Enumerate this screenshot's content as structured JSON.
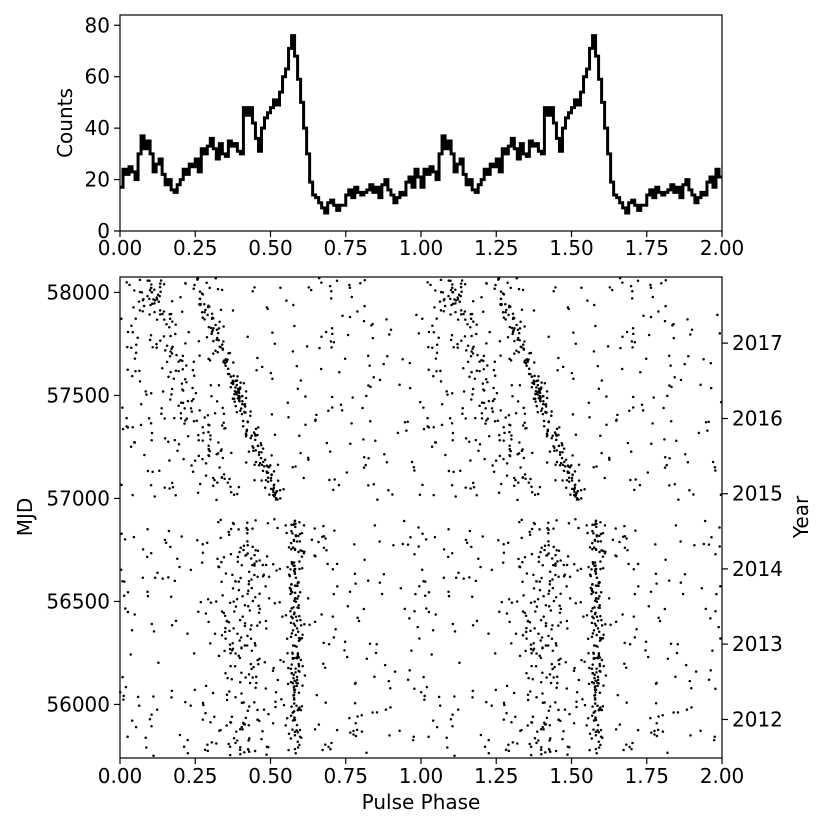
{
  "chart_data": [
    {
      "type": "line",
      "panel": "top",
      "title": "",
      "xlabel": "",
      "ylabel": "Counts",
      "xlim": [
        0.0,
        2.0
      ],
      "ylim": [
        0,
        84
      ],
      "xticks": [
        "0.00",
        "0.25",
        "0.50",
        "0.75",
        "1.00",
        "1.25",
        "1.50",
        "1.75",
        "2.00"
      ],
      "yticks": [
        "0",
        "20",
        "40",
        "60",
        "80"
      ],
      "drawstyle": "steps",
      "series": [
        {
          "x": [
            0.0,
            0.01,
            0.02,
            0.03,
            0.04,
            0.05,
            0.06,
            0.07,
            0.08,
            0.09,
            0.1,
            0.11,
            0.12,
            0.13,
            0.14,
            0.15,
            0.16,
            0.17,
            0.18,
            0.19,
            0.2,
            0.21,
            0.22,
            0.23,
            0.24,
            0.25,
            0.26,
            0.27,
            0.28,
            0.29,
            0.3,
            0.31,
            0.32,
            0.33,
            0.34,
            0.35,
            0.36,
            0.37,
            0.38,
            0.39,
            0.4,
            0.41,
            0.42,
            0.43,
            0.44,
            0.45,
            0.46,
            0.47,
            0.48,
            0.49,
            0.5,
            0.51,
            0.52,
            0.53,
            0.54,
            0.55,
            0.56,
            0.57,
            0.58,
            0.59,
            0.6,
            0.61,
            0.62,
            0.63,
            0.64,
            0.65,
            0.66,
            0.67,
            0.68,
            0.69,
            0.7,
            0.71,
            0.72,
            0.73,
            0.74,
            0.75,
            0.76,
            0.77,
            0.78,
            0.79,
            0.8,
            0.81,
            0.82,
            0.83,
            0.84,
            0.85,
            0.86,
            0.87,
            0.88,
            0.89,
            0.9,
            0.91,
            0.92,
            0.93,
            0.94,
            0.95,
            0.96,
            0.97,
            0.98,
            0.99
          ],
          "y": [
            17,
            24,
            22,
            25,
            23,
            20,
            30,
            37,
            32,
            35,
            30,
            23,
            26,
            28,
            22,
            18,
            20,
            16,
            15,
            18,
            20,
            24,
            22,
            26,
            25,
            28,
            23,
            32,
            30,
            33,
            36,
            32,
            28,
            34,
            30,
            29,
            35,
            33,
            34,
            31,
            30,
            48,
            45,
            48,
            42,
            36,
            31,
            40,
            44,
            46,
            48,
            51,
            49,
            54,
            60,
            63,
            71,
            76,
            68,
            59,
            50,
            40,
            30,
            19,
            14,
            13,
            11,
            9,
            7,
            11,
            12,
            10,
            8,
            10,
            10,
            14,
            16,
            13,
            17,
            15,
            14,
            15,
            16,
            18,
            15,
            17,
            13,
            18,
            20,
            16,
            14,
            11,
            13,
            15,
            14,
            19,
            21,
            17,
            24,
            21
          ]
        }
      ]
    },
    {
      "type": "scatter",
      "panel": "bottom",
      "title": "",
      "xlabel": "Pulse Phase",
      "ylabel": "MJD",
      "ylabel_right": "Year",
      "xlim": [
        0.0,
        2.0
      ],
      "ylim": [
        55740,
        58075
      ],
      "xticks": [
        "0.00",
        "0.25",
        "0.50",
        "0.75",
        "1.00",
        "1.25",
        "1.50",
        "1.75",
        "2.00"
      ],
      "yticks": [
        {
          "label": "56000",
          "value": 56000
        },
        {
          "label": "56500",
          "value": 56500
        },
        {
          "label": "57000",
          "value": 57000
        },
        {
          "label": "57500",
          "value": 57500
        },
        {
          "label": "58000",
          "value": 58000
        }
      ],
      "yticks_right": [
        {
          "label": "2012",
          "value": 55927
        },
        {
          "label": "2013",
          "value": 56293
        },
        {
          "label": "2014",
          "value": 56658
        },
        {
          "label": "2015",
          "value": 57023
        },
        {
          "label": "2016",
          "value": 57388
        },
        {
          "label": "2017",
          "value": 57754
        }
      ],
      "epochs": [
        {
          "mjd_min": 55750,
          "mjd_max": 56900,
          "peak_phase": 0.58,
          "drift": 0.0
        },
        {
          "mjd_min": 57000,
          "mjd_max": 58075,
          "peak_phase": 0.52,
          "drift": -0.27
        }
      ],
      "marker_color": "#000000"
    }
  ]
}
